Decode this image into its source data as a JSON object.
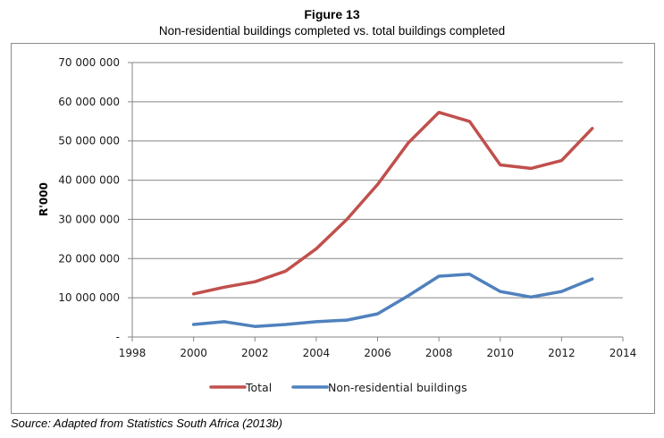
{
  "figure": {
    "title": "Figure 13",
    "subtitle": "Non-residential buildings completed vs. total buildings completed",
    "source": "Source: Adapted from Statistics South Africa (2013b)"
  },
  "chart_data": {
    "type": "line",
    "title": "Figure 13",
    "subtitle": "Non-residential buildings completed vs. total buildings completed",
    "xlabel": "",
    "ylabel": "R'000",
    "xlim": [
      1998,
      2014
    ],
    "ylim": [
      0,
      70000000
    ],
    "x_ticks": [
      1998,
      2000,
      2002,
      2004,
      2006,
      2008,
      2010,
      2012,
      2014
    ],
    "x_tick_labels": [
      "1998",
      "2000",
      "2002",
      "2004",
      "2006",
      "2008",
      "2010",
      "2012",
      "2014"
    ],
    "y_ticks": [
      0,
      10000000,
      20000000,
      30000000,
      40000000,
      50000000,
      60000000,
      70000000
    ],
    "y_tick_labels": [
      "-",
      "10 000 000",
      "20 000 000",
      "30 000 000",
      "40 000 000",
      "50 000 000",
      "60 000 000",
      "70 000 000"
    ],
    "grid": "horizontal",
    "legend_position": "bottom",
    "x": [
      2000,
      2001,
      2002,
      2003,
      2004,
      2005,
      2006,
      2007,
      2008,
      2009,
      2010,
      2011,
      2012,
      2013
    ],
    "series": [
      {
        "name": "Total",
        "color": "#c0504d",
        "values": [
          11000000,
          12700000,
          14100000,
          16800000,
          22500000,
          30000000,
          38900000,
          49500000,
          57300000,
          55000000,
          43900000,
          43000000,
          45000000,
          53200000
        ]
      },
      {
        "name": "Non-residential buildings",
        "color": "#4f81bd",
        "values": [
          3200000,
          3900000,
          2700000,
          3200000,
          3900000,
          4300000,
          5900000,
          10500000,
          15500000,
          16000000,
          11600000,
          10200000,
          11600000,
          14800000
        ]
      }
    ]
  }
}
